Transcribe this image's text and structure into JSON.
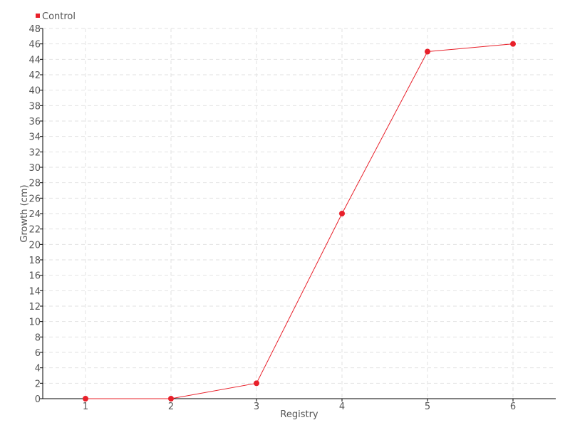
{
  "chart_data": {
    "type": "line",
    "title": "",
    "xlabel": "Registry",
    "ylabel": "Growth (cm)",
    "categories": [
      "1",
      "2",
      "3",
      "4",
      "5",
      "6"
    ],
    "x": [
      1,
      2,
      3,
      4,
      5,
      6
    ],
    "series": [
      {
        "name": "Control",
        "values": [
          0,
          0,
          2,
          24,
          45,
          46
        ],
        "color": "#e8202a"
      }
    ],
    "xlim": [
      0.5,
      6.5
    ],
    "ylim": [
      0,
      48
    ],
    "ytick_step": 2,
    "grid": true,
    "legend": "top-left"
  }
}
